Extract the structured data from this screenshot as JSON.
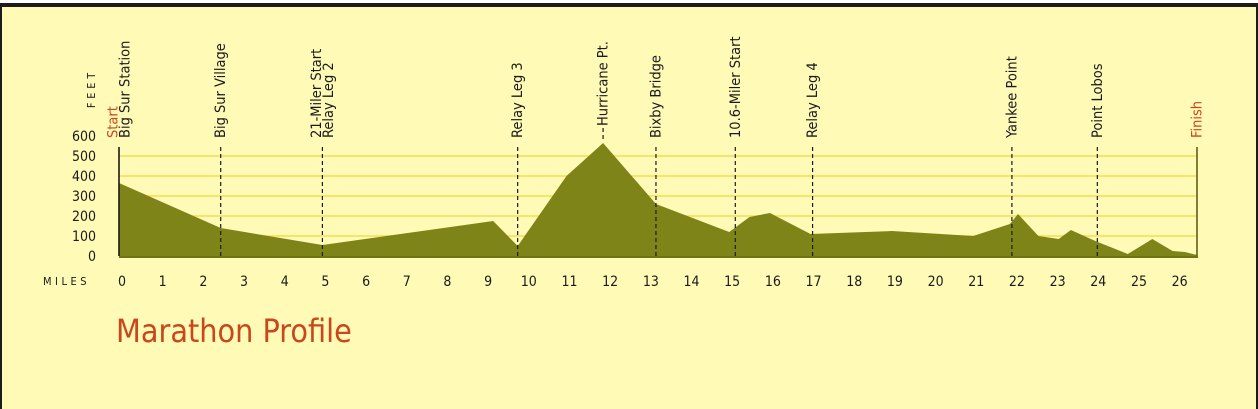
{
  "chart_data": {
    "type": "area",
    "title": "Marathon Profile",
    "ylabel": "FEET",
    "xlabel": "MILES",
    "ylim": [
      0,
      600
    ],
    "xlim": [
      0,
      26.5
    ],
    "yticks": [
      0,
      100,
      200,
      300,
      400,
      500,
      600
    ],
    "xticks": [
      0,
      1,
      2,
      3,
      4,
      5,
      6,
      7,
      8,
      9,
      10,
      11,
      12,
      13,
      14,
      15,
      16,
      17,
      18,
      19,
      20,
      21,
      22,
      23,
      24,
      25,
      26
    ],
    "grid": true,
    "x": [
      0,
      2.5,
      5,
      9.2,
      9.8,
      11,
      11.9,
      13.2,
      15,
      15.5,
      16,
      17,
      19,
      21,
      21.9,
      22.1,
      22.6,
      23.1,
      23.4,
      24,
      24.8,
      25.4,
      25.9,
      26.2,
      26.5
    ],
    "y": [
      365,
      140,
      55,
      175,
      50,
      400,
      565,
      260,
      120,
      195,
      215,
      110,
      125,
      100,
      160,
      210,
      100,
      85,
      130,
      75,
      10,
      85,
      25,
      20,
      5
    ],
    "markers": [
      {
        "mile": 0,
        "labels": [
          "Big Sur Station"
        ],
        "start_label": "Start"
      },
      {
        "mile": 2.5,
        "labels": [
          "Big Sur Village"
        ]
      },
      {
        "mile": 5,
        "labels": [
          "21-Miler Start",
          "Relay Leg 2"
        ]
      },
      {
        "mile": 9.8,
        "labels": [
          "Relay Leg 3"
        ]
      },
      {
        "mile": 11.9,
        "labels": [
          "Hurricane Pt."
        ],
        "peak": true
      },
      {
        "mile": 13.2,
        "labels": [
          "Bixby Bridge"
        ]
      },
      {
        "mile": 15.15,
        "labels": [
          "10.6-Miler Start"
        ]
      },
      {
        "mile": 17.05,
        "labels": [
          "Relay Leg 4"
        ]
      },
      {
        "mile": 21.95,
        "labels": [
          "Yankee Point"
        ]
      },
      {
        "mile": 24.05,
        "labels": [
          "Point Lobos"
        ]
      },
      {
        "mile": 26.5,
        "labels": [
          "Finish"
        ],
        "finish": true
      }
    ]
  },
  "colors": {
    "background": "#fffab6",
    "fill": "#7f8418",
    "grid": "#f9e36b",
    "text": "#1a1a1a",
    "accent": "#c9471d"
  }
}
